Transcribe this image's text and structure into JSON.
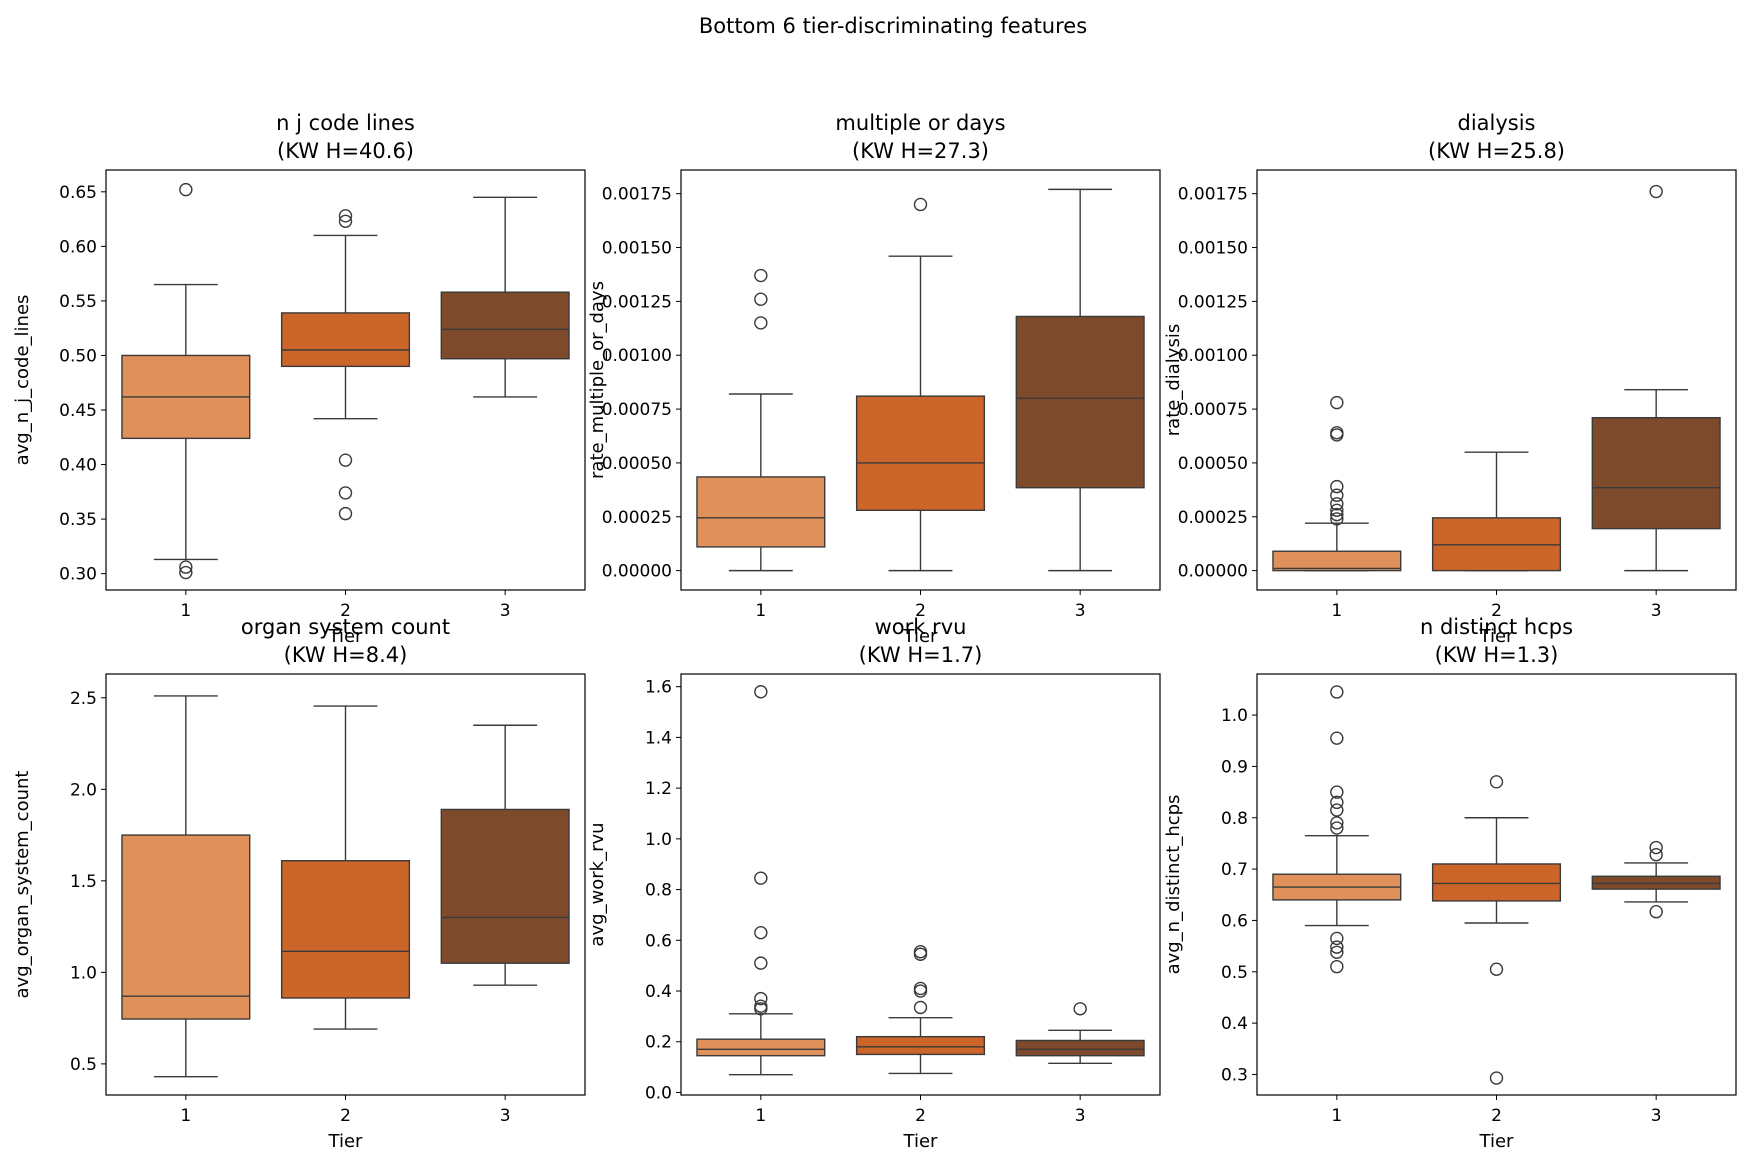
{
  "figure": {
    "suptitle": "Bottom 6 tier-discriminating features"
  },
  "colors": {
    "tier1": "#E0915B",
    "tier2": "#CC6529",
    "tier3": "#7E4A2C",
    "line": "#3a3a3a"
  },
  "chart_data": [
    {
      "type": "box",
      "title": "n j code lines",
      "subtitle": "(KW H=40.6)",
      "xlabel": "Tier",
      "ylabel": "avg_n_j_code_lines",
      "categories": [
        "1",
        "2",
        "3"
      ],
      "ylim": [
        0.285,
        0.67
      ],
      "yticks": [
        0.3,
        0.35,
        0.4,
        0.45,
        0.5,
        0.55,
        0.6,
        0.65
      ],
      "yticklabels": [
        "0.30",
        "0.35",
        "0.40",
        "0.45",
        "0.50",
        "0.55",
        "0.60",
        "0.65"
      ],
      "boxes": [
        {
          "tier": "1",
          "whislo": 0.313,
          "q1": 0.424,
          "med": 0.462,
          "q3": 0.5,
          "whishi": 0.565,
          "fliers": [
            0.652,
            0.306,
            0.301
          ]
        },
        {
          "tier": "2",
          "whislo": 0.442,
          "q1": 0.49,
          "med": 0.505,
          "q3": 0.539,
          "whishi": 0.61,
          "fliers": [
            0.628,
            0.623,
            0.404,
            0.374,
            0.355
          ]
        },
        {
          "tier": "3",
          "whislo": 0.462,
          "q1": 0.497,
          "med": 0.524,
          "q3": 0.558,
          "whishi": 0.645,
          "fliers": []
        }
      ]
    },
    {
      "type": "box",
      "title": "multiple or days",
      "subtitle": "(KW H=27.3)",
      "xlabel": "Tier",
      "ylabel": "rate_multiple_or_days",
      "categories": [
        "1",
        "2",
        "3"
      ],
      "ylim": [
        -9e-05,
        0.00186
      ],
      "yticks": [
        0,
        0.00025,
        0.0005,
        0.00075,
        0.001,
        0.00125,
        0.0015,
        0.00175
      ],
      "yticklabels": [
        "0.00000",
        "0.00025",
        "0.00050",
        "0.00075",
        "0.00100",
        "0.00125",
        "0.00150",
        "0.00175"
      ],
      "boxes": [
        {
          "tier": "1",
          "whislo": 0.0,
          "q1": 0.00011,
          "med": 0.000245,
          "q3": 0.000435,
          "whishi": 0.00082,
          "fliers": [
            0.00137,
            0.00126,
            0.00115
          ]
        },
        {
          "tier": "2",
          "whislo": 0.0,
          "q1": 0.00028,
          "med": 0.0005,
          "q3": 0.00081,
          "whishi": 0.00146,
          "fliers": [
            0.0017
          ]
        },
        {
          "tier": "3",
          "whislo": 0.0,
          "q1": 0.000385,
          "med": 0.0008,
          "q3": 0.00118,
          "whishi": 0.00177,
          "fliers": []
        }
      ]
    },
    {
      "type": "box",
      "title": "dialysis",
      "subtitle": "(KW H=25.8)",
      "xlabel": "Tier",
      "ylabel": "rate_dialysis",
      "categories": [
        "1",
        "2",
        "3"
      ],
      "ylim": [
        -9e-05,
        0.00186
      ],
      "yticks": [
        0,
        0.00025,
        0.0005,
        0.00075,
        0.001,
        0.00125,
        0.0015,
        0.00175
      ],
      "yticklabels": [
        "0.00000",
        "0.00025",
        "0.00050",
        "0.00075",
        "0.00100",
        "0.00125",
        "0.00150",
        "0.00175"
      ],
      "boxes": [
        {
          "tier": "1",
          "whislo": 0.0,
          "q1": 0.0,
          "med": 1e-05,
          "q3": 9e-05,
          "whishi": 0.00022,
          "fliers": [
            0.00078,
            0.00064,
            0.00063,
            0.00039,
            0.00035,
            0.00031,
            0.00028,
            0.00026,
            0.00024
          ]
        },
        {
          "tier": "2",
          "whislo": 0.0,
          "q1": 0.0,
          "med": 0.00012,
          "q3": 0.000245,
          "whishi": 0.00055,
          "fliers": []
        },
        {
          "tier": "3",
          "whislo": 0.0,
          "q1": 0.000195,
          "med": 0.000385,
          "q3": 0.00071,
          "whishi": 0.00084,
          "fliers": [
            0.00176
          ]
        }
      ]
    },
    {
      "type": "box",
      "title": "organ system count",
      "subtitle": "(KW H=8.4)",
      "xlabel": "Tier",
      "ylabel": "avg_organ_system_count",
      "categories": [
        "1",
        "2",
        "3"
      ],
      "ylim": [
        0.33,
        2.63
      ],
      "yticks": [
        0.5,
        1.0,
        1.5,
        2.0,
        2.5
      ],
      "yticklabels": [
        "0.5",
        "1.0",
        "1.5",
        "2.0",
        "2.5"
      ],
      "boxes": [
        {
          "tier": "1",
          "whislo": 0.43,
          "q1": 0.745,
          "med": 0.87,
          "q3": 1.75,
          "whishi": 2.51,
          "fliers": []
        },
        {
          "tier": "2",
          "whislo": 0.69,
          "q1": 0.86,
          "med": 1.115,
          "q3": 1.61,
          "whishi": 2.455,
          "fliers": []
        },
        {
          "tier": "3",
          "whislo": 0.93,
          "q1": 1.05,
          "med": 1.3,
          "q3": 1.89,
          "whishi": 2.35,
          "fliers": []
        }
      ]
    },
    {
      "type": "box",
      "title": "work rvu",
      "subtitle": "(KW H=1.7)",
      "xlabel": "Tier",
      "ylabel": "avg_work_rvu",
      "categories": [
        "1",
        "2",
        "3"
      ],
      "ylim": [
        -0.01,
        1.65
      ],
      "yticks": [
        0.0,
        0.2,
        0.4,
        0.6,
        0.8,
        1.0,
        1.2,
        1.4,
        1.6
      ],
      "yticklabels": [
        "0.0",
        "0.2",
        "0.4",
        "0.6",
        "0.8",
        "1.0",
        "1.2",
        "1.4",
        "1.6"
      ],
      "boxes": [
        {
          "tier": "1",
          "whislo": 0.07,
          "q1": 0.145,
          "med": 0.17,
          "q3": 0.21,
          "whishi": 0.31,
          "fliers": [
            1.58,
            0.845,
            0.63,
            0.51,
            0.37,
            0.34,
            0.33
          ]
        },
        {
          "tier": "2",
          "whislo": 0.075,
          "q1": 0.15,
          "med": 0.18,
          "q3": 0.22,
          "whishi": 0.295,
          "fliers": [
            0.555,
            0.545,
            0.41,
            0.4,
            0.335
          ]
        },
        {
          "tier": "3",
          "whislo": 0.115,
          "q1": 0.145,
          "med": 0.17,
          "q3": 0.205,
          "whishi": 0.245,
          "fliers": [
            0.33
          ]
        }
      ]
    },
    {
      "type": "box",
      "title": "n distinct hcps",
      "subtitle": "(KW H=1.3)",
      "xlabel": "Tier",
      "ylabel": "avg_n_distinct_hcps",
      "categories": [
        "1",
        "2",
        "3"
      ],
      "ylim": [
        0.26,
        1.08
      ],
      "yticks": [
        0.3,
        0.4,
        0.5,
        0.6,
        0.7,
        0.8,
        0.9,
        1.0
      ],
      "yticklabels": [
        "0.3",
        "0.4",
        "0.5",
        "0.6",
        "0.7",
        "0.8",
        "0.9",
        "1.0"
      ],
      "boxes": [
        {
          "tier": "1",
          "whislo": 0.59,
          "q1": 0.64,
          "med": 0.665,
          "q3": 0.69,
          "whishi": 0.765,
          "fliers": [
            1.045,
            0.955,
            0.85,
            0.83,
            0.815,
            0.79,
            0.78,
            0.565,
            0.548,
            0.538,
            0.51
          ]
        },
        {
          "tier": "2",
          "whislo": 0.595,
          "q1": 0.638,
          "med": 0.672,
          "q3": 0.71,
          "whishi": 0.8,
          "fliers": [
            0.87,
            0.505,
            0.293
          ]
        },
        {
          "tier": "3",
          "whislo": 0.636,
          "q1": 0.661,
          "med": 0.672,
          "q3": 0.686,
          "whishi": 0.712,
          "fliers": [
            0.742,
            0.728,
            0.617
          ]
        }
      ]
    }
  ]
}
